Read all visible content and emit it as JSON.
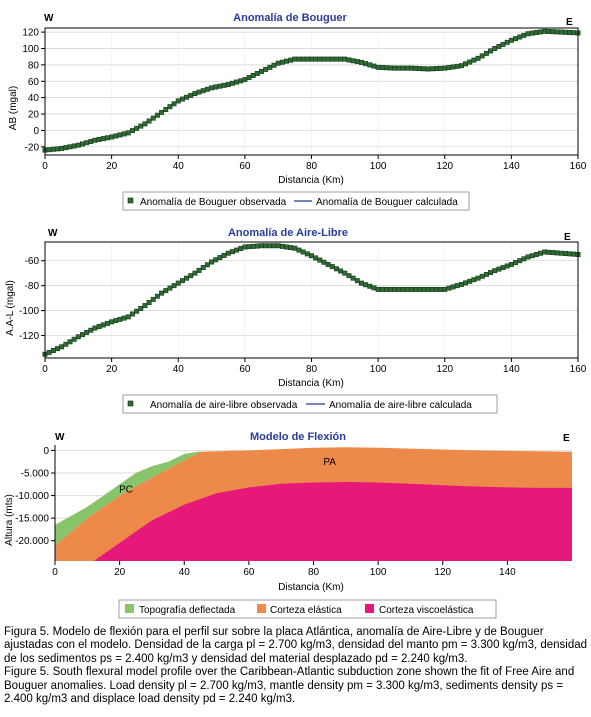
{
  "charts": [
    {
      "title": "Anomalía de Bouguer",
      "left_label": "W",
      "right_label": "E",
      "ylabel": "AB (mgal)",
      "xlabel": "Distancia (Km)",
      "legend": [
        "Anomalía de Bouguer observada",
        "Anomalía de Bouguer calculada"
      ]
    },
    {
      "title": "Anomalía de Aire-Libre",
      "left_label": "W",
      "right_label": "E",
      "ylabel": "A.A-L (mgal)",
      "xlabel": "Distancia (Km)",
      "legend": [
        "Anomalía de aire-libre observada",
        "Anomalía de aire-libre calculada"
      ]
    },
    {
      "title": "Modelo de Flexión",
      "left_label": "W",
      "right_label": "E",
      "ylabel": "Altura (mts)",
      "xlabel": "Distancia (Km)",
      "labels": [
        "PC",
        "PA"
      ],
      "legend": [
        "Topografía deflectada",
        "Corteza elástica",
        "Corteza viscoelástica"
      ]
    }
  ],
  "chart_data": [
    {
      "type": "line",
      "xlim": [
        0,
        160
      ],
      "ylim": [
        -30,
        125
      ],
      "xticks": [
        0,
        20,
        40,
        60,
        80,
        100,
        120,
        140,
        160
      ],
      "yticks": [
        -20,
        0,
        20,
        40,
        60,
        80,
        100,
        120
      ],
      "colors": {
        "observed": "#2e6b34",
        "calculated": "#1f3f9a"
      },
      "x": [
        0,
        5,
        10,
        15,
        20,
        25,
        30,
        35,
        40,
        45,
        50,
        55,
        60,
        65,
        70,
        75,
        80,
        85,
        90,
        95,
        100,
        105,
        110,
        115,
        120,
        125,
        130,
        135,
        140,
        145,
        150,
        155,
        160
      ],
      "series": [
        {
          "name": "Anomalía de Bouguer observada",
          "values": [
            -24,
            -22,
            -18,
            -12,
            -8,
            -3,
            8,
            22,
            36,
            45,
            52,
            56,
            62,
            72,
            82,
            87,
            87,
            87,
            87,
            83,
            77,
            76,
            76,
            75,
            76,
            79,
            88,
            100,
            110,
            118,
            121,
            120,
            119
          ]
        },
        {
          "name": "Anomalía de Bouguer calculada",
          "values": [
            -24,
            -22,
            -18,
            -12,
            -8,
            -3,
            8,
            22,
            36,
            45,
            52,
            56,
            62,
            72,
            82,
            87,
            87,
            87,
            87,
            83,
            77,
            76,
            76,
            75,
            76,
            79,
            88,
            100,
            110,
            118,
            121,
            120,
            119
          ]
        }
      ]
    },
    {
      "type": "line",
      "xlim": [
        0,
        160
      ],
      "ylim": [
        -138,
        -45
      ],
      "xticks": [
        0,
        20,
        40,
        60,
        80,
        100,
        120,
        140,
        160
      ],
      "yticks": [
        -120,
        -100,
        -80,
        -60
      ],
      "ytick_labels": [
        "-120",
        "-100",
        "-80",
        "-60"
      ],
      "colors": {
        "observed": "#2e6b34",
        "calculated": "#1f3f9a"
      },
      "x": [
        0,
        5,
        10,
        15,
        20,
        25,
        30,
        35,
        40,
        45,
        50,
        55,
        60,
        65,
        70,
        75,
        80,
        85,
        90,
        95,
        100,
        105,
        110,
        115,
        120,
        125,
        130,
        135,
        140,
        145,
        150,
        155,
        160
      ],
      "series": [
        {
          "name": "Anomalía de aire-libre observada",
          "values": [
            -135,
            -129,
            -121,
            -114,
            -109,
            -105,
            -96,
            -86,
            -78,
            -70,
            -61,
            -54,
            -49,
            -48,
            -48,
            -50,
            -56,
            -63,
            -70,
            -78,
            -83,
            -83,
            -83,
            -83,
            -83,
            -79,
            -74,
            -68,
            -63,
            -57,
            -53,
            -54,
            -55
          ]
        },
        {
          "name": "Anomalía de aire-libre calculada",
          "values": [
            -135,
            -129,
            -121,
            -114,
            -109,
            -105,
            -96,
            -86,
            -78,
            -70,
            -61,
            -54,
            -49,
            -48,
            -48,
            -50,
            -56,
            -63,
            -70,
            -78,
            -83,
            -83,
            -83,
            -83,
            -83,
            -79,
            -74,
            -68,
            -63,
            -57,
            -53,
            -54,
            -55
          ]
        }
      ]
    },
    {
      "type": "area",
      "xlim": [
        0,
        160
      ],
      "ylim": [
        -24500,
        1200
      ],
      "xticks": [
        0,
        20,
        40,
        60,
        80,
        100,
        120,
        140
      ],
      "yticks": [
        0,
        -5000,
        -10000,
        -15000,
        -20000
      ],
      "ytick_labels": [
        "0",
        "-5.000",
        "-10.000",
        "-15.000",
        "-20.000"
      ],
      "colors": {
        "topografia": "#88c46a",
        "elastica": "#ed8a4a",
        "viscoelastica": "#e6197a"
      },
      "layers": [
        {
          "name": "Topografía deflectada",
          "x": [
            0,
            5,
            10,
            15,
            20,
            25,
            30,
            35,
            40,
            45,
            45,
            40,
            35,
            30,
            25,
            20,
            15,
            10,
            5,
            0
          ],
          "y": [
            -16500,
            -14500,
            -12500,
            -10000,
            -7500,
            -5000,
            -3500,
            -2500,
            -800,
            -200,
            -300,
            -2200,
            -4000,
            -6000,
            -8000,
            -10000,
            -12500,
            -15000,
            -18000,
            -21000
          ]
        },
        {
          "name": "Corteza elástica",
          "x": [
            0,
            5,
            10,
            15,
            20,
            25,
            30,
            35,
            40,
            45,
            50,
            60,
            70,
            80,
            90,
            100,
            110,
            120,
            130,
            140,
            150,
            160,
            160,
            0
          ],
          "y": [
            -21000,
            -18000,
            -15000,
            -12500,
            -10000,
            -8000,
            -6000,
            -4000,
            -2200,
            -300,
            -200,
            0,
            300,
            600,
            700,
            600,
            400,
            200,
            0,
            -100,
            -200,
            -300,
            -24500,
            -24500
          ]
        },
        {
          "name": "Corteza viscoelástica",
          "x": [
            12,
            20,
            30,
            40,
            50,
            60,
            70,
            80,
            90,
            100,
            110,
            120,
            130,
            140,
            150,
            160,
            160,
            12
          ],
          "y": [
            -24500,
            -20500,
            -15500,
            -12000,
            -9500,
            -8200,
            -7400,
            -7100,
            -7000,
            -7100,
            -7400,
            -7700,
            -8000,
            -8200,
            -8300,
            -8300,
            -24500,
            -24500
          ]
        }
      ],
      "layer_labels": [
        {
          "text": "PC",
          "x": 22,
          "y": -9300
        },
        {
          "text": "PA",
          "x": 85,
          "y": -3200
        }
      ]
    }
  ],
  "caption": [
    "Figura 5. Modelo de flexión para el perfil sur sobre la placa Atlántica, anomalía de Aire-Libre y de Bouguer ajustadas con el  modelo. Densidad de la carga pl = 2.700 kg/m3, densidad del manto pm = 3.300 kg/m3, densidad de los sedimentos ps = 2.400 kg/m3 y densidad del material desplazado pd = 2.240 kg/m3.",
    "Figure 5. South flexural model profile over the Caribbean-Atlantic subduction zone shown the fit of Free Aire and Bouguer anomalies. Load density pl = 2.700 kg/m3, mantle density pm = 3.300 kg/m3, sediments density ps = 2.400 kg/m3 and displace load density pd = 2.240 kg/m3."
  ]
}
